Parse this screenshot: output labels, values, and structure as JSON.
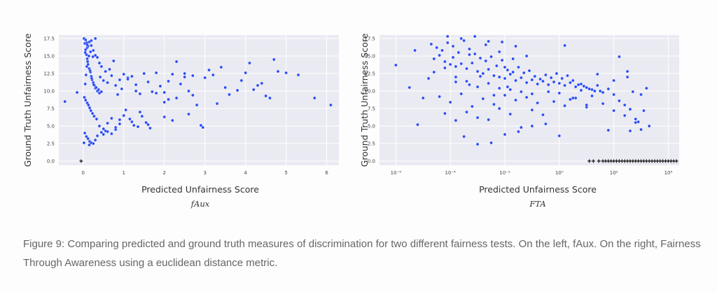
{
  "caption": "Figure 9: Comparing predicted and ground truth measures of discrimination for two different fairness tests. On the left, fAux. On the right, Fairness Through Awareness using a euclidean distance metric.",
  "colors": {
    "points": "#2a4cf5",
    "plot_bg": "#eaeaf2",
    "grid": "#ffffff",
    "marker_plus": "#111111"
  },
  "chart_data": [
    {
      "type": "scatter",
      "subtitle": "fAux",
      "xlabel": "Predicted Unfairness Score",
      "ylabel": "Ground Truth Unfairness Score",
      "xlim": [
        -0.6,
        6.3
      ],
      "ylim": [
        -0.6,
        18.0
      ],
      "xticks": [
        0,
        1,
        2,
        3,
        4,
        5,
        6
      ],
      "yticks": [
        0.0,
        2.5,
        5.0,
        7.5,
        10.0,
        12.5,
        15.0,
        17.5
      ],
      "xscale": "linear",
      "grid": true,
      "series": [
        {
          "marker": "circle",
          "x": [
            -0.45,
            -0.15,
            0.02,
            0.04,
            0.06,
            0.08,
            0.1,
            0.12,
            0.15,
            0.18,
            0.2,
            0.22,
            0.25,
            0.28,
            0.3,
            0.35,
            0.4,
            0.05,
            0.07,
            0.09,
            0.11,
            0.14,
            0.17,
            0.21,
            0.26,
            0.32,
            0.38,
            0.45,
            0.03,
            0.06,
            0.1,
            0.13,
            0.16,
            0.19,
            0.23,
            0.27,
            0.33,
            0.42,
            0.5,
            0.55,
            0.6,
            0.7,
            0.8,
            0.9,
            1.0,
            0.65,
            0.75,
            0.85,
            0.95,
            1.1,
            1.2,
            1.3,
            1.4,
            1.5,
            1.6,
            1.7,
            1.8,
            1.9,
            2.0,
            2.1,
            2.2,
            2.3,
            2.4,
            2.5,
            2.6,
            2.7,
            2.8,
            3.0,
            3.2,
            3.4,
            3.6,
            3.8,
            4.0,
            4.2,
            4.4,
            4.6,
            4.7,
            5.0,
            5.3,
            5.7,
            6.1,
            1.0,
            1.2,
            1.4,
            1.6,
            2.0,
            2.2,
            2.6,
            0.4,
            0.5,
            0.6,
            0.7,
            0.8,
            0.9,
            1.05,
            1.15,
            1.25,
            1.35,
            1.45,
            1.55,
            1.65,
            2.9,
            2.95,
            0.04,
            0.08,
            0.12,
            0.16,
            0.2,
            0.3,
            0.35,
            0.45,
            0.55,
            0.25,
            0.15,
            0.02,
            0.5,
            0.6,
            0.7,
            0.8,
            0.9,
            0.05,
            0.1,
            0.15,
            0.2,
            0.25,
            0.3,
            0.35,
            0.4,
            0.45,
            0.06,
            0.09,
            0.12,
            0.18,
            0.24,
            2.3,
            2.5,
            3.1,
            3.3,
            3.5,
            3.9,
            4.1,
            4.5,
            4.3,
            4.8,
            1.8,
            2.0,
            1.3,
            1.1,
            2.1,
            2.7,
            0.3,
            0.2,
            0.1
          ],
          "y": [
            8.5,
            9.8,
            17.5,
            16.8,
            15.9,
            15.2,
            14.6,
            13.8,
            13.2,
            12.7,
            12.1,
            11.6,
            11.2,
            10.8,
            10.4,
            10.0,
            9.7,
            11.0,
            12.3,
            13.5,
            14.2,
            15.0,
            12.9,
            11.8,
            10.9,
            10.5,
            10.2,
            9.9,
            9.1,
            8.7,
            8.3,
            8.0,
            7.6,
            7.2,
            6.8,
            6.4,
            6.0,
            12.0,
            11.5,
            12.8,
            11.2,
            12.2,
            10.8,
            11.6,
            12.4,
            13.1,
            14.3,
            9.5,
            10.3,
            11.9,
            12.1,
            10.0,
            9.6,
            12.5,
            11.3,
            9.9,
            12.6,
            10.7,
            9.8,
            11.4,
            12.4,
            9.0,
            11.0,
            12.0,
            10.0,
            12.2,
            8.0,
            11.9,
            12.3,
            13.4,
            9.5,
            10.1,
            12.6,
            10.2,
            11.1,
            9.0,
            14.5,
            12.6,
            12.3,
            9.0,
            8.0,
            6.5,
            5.6,
            7.0,
            5.2,
            6.3,
            5.8,
            6.7,
            5.0,
            4.6,
            5.4,
            6.1,
            4.8,
            5.9,
            7.3,
            6.0,
            5.1,
            4.9,
            6.4,
            5.5,
            4.7,
            5.1,
            4.8,
            4.0,
            3.5,
            3.2,
            2.8,
            2.6,
            3.0,
            3.6,
            4.1,
            4.3,
            2.5,
            2.3,
            2.6,
            3.8,
            4.2,
            3.9,
            4.5,
            5.3,
            15.5,
            16.2,
            17.0,
            16.5,
            15.8,
            15.1,
            14.8,
            14.0,
            13.5,
            17.3,
            16.9,
            16.4,
            15.6,
            14.9,
            14.2,
            12.5,
            13.0,
            8.2,
            10.5,
            11.5,
            14.0,
            9.3,
            10.8,
            12.8,
            9.7,
            8.4,
            10.9,
            11.7,
            8.8,
            9.4,
            17.5,
            17.2,
            16.6
          ]
        },
        {
          "marker": "plus",
          "x": [
            -0.05
          ],
          "y": [
            0.0
          ]
        }
      ]
    },
    {
      "type": "scatter",
      "subtitle": "FTA",
      "xlabel": "Predicted Unfairness Score",
      "ylabel": "Ground Truth Unfairness Score",
      "xlim": [
        -6.6,
        4.4
      ],
      "ylim": [
        -0.6,
        18.0
      ],
      "xticks": [
        -6,
        -4,
        -2,
        0,
        2,
        4
      ],
      "xticklabels": [
        "10⁻⁶",
        "10⁻⁴",
        "10⁻²",
        "10⁰",
        "10²",
        "10⁴"
      ],
      "yticks": [
        0.0,
        2.5,
        5.0,
        7.5,
        10.0,
        12.5,
        15.0,
        17.5
      ],
      "xscale": "log",
      "grid": true,
      "series": [
        {
          "marker": "circle",
          "x": [
            -6.0,
            -5.5,
            -5.2,
            -5.0,
            -4.8,
            -4.6,
            -4.4,
            -4.2,
            -4.0,
            -3.8,
            -3.6,
            -3.4,
            -3.2,
            -3.0,
            -2.8,
            -2.6,
            -2.4,
            -2.2,
            -2.0,
            -1.8,
            -1.6,
            -1.4,
            -1.2,
            -1.0,
            -0.8,
            -0.6,
            -0.4,
            -0.2,
            0.0,
            0.2,
            0.4,
            0.6,
            0.8,
            1.0,
            1.2,
            1.4,
            1.6,
            1.8,
            2.0,
            2.2,
            2.4,
            2.6,
            2.8,
            3.0,
            -4.5,
            -4.3,
            -4.1,
            -3.9,
            -3.7,
            -3.5,
            -3.3,
            -3.1,
            -2.9,
            -2.7,
            -2.5,
            -2.3,
            -2.1,
            -1.9,
            -1.7,
            -1.5,
            -1.3,
            -1.1,
            -0.9,
            -0.7,
            -0.5,
            -0.3,
            -0.1,
            0.1,
            0.3,
            0.5,
            0.7,
            0.9,
            1.1,
            1.3,
            -4.4,
            -4.0,
            -3.6,
            -3.2,
            -2.8,
            -2.4,
            -2.0,
            -1.6,
            -1.2,
            -0.8,
            -0.4,
            0.0,
            0.4,
            0.8,
            1.2,
            1.6,
            2.0,
            2.4,
            2.8,
            -4.2,
            -3.8,
            -3.4,
            -3.0,
            -2.6,
            -2.2,
            -1.8,
            -1.4,
            -1.0,
            -0.6,
            -0.2,
            0.2,
            0.6,
            1.0,
            -4.6,
            -4.2,
            -3.8,
            -3.4,
            -3.0,
            -2.6,
            -2.2,
            -1.8,
            -1.4,
            -1.0,
            -3.5,
            -3.0,
            -2.5,
            -2.0,
            -1.5,
            -1.0,
            -0.5,
            0.0,
            0.5,
            1.0,
            1.5,
            2.0,
            2.5,
            3.0,
            3.2,
            -5.3,
            -4.7,
            -4.1,
            -3.6,
            -3.1,
            -2.6,
            -2.1,
            -1.6,
            -3.9,
            -3.3,
            -2.7,
            -2.2,
            -1.7,
            -1.2,
            1.8,
            2.6,
            2.9,
            3.1,
            0.2,
            1.4,
            2.2,
            2.5,
            2.7,
            3.3,
            -3.3,
            -2.4,
            -1.9,
            -3.8,
            -2.9,
            -2.0
          ],
          "y": [
            13.7,
            10.5,
            5.2,
            9.0,
            11.8,
            14.6,
            15.1,
            14.2,
            13.8,
            13.5,
            13.9,
            13.2,
            14.0,
            12.8,
            12.5,
            13.1,
            12.2,
            12.0,
            11.8,
            12.4,
            11.5,
            11.9,
            11.2,
            11.6,
            11.0,
            11.4,
            10.9,
            11.3,
            11.1,
            10.8,
            11.2,
            10.6,
            11.0,
            10.5,
            10.2,
            10.8,
            9.8,
            10.3,
            9.5,
            8.6,
            8.0,
            7.4,
            6.0,
            4.5,
            16.2,
            15.8,
            16.9,
            16.4,
            15.5,
            17.2,
            16.0,
            15.3,
            14.7,
            16.6,
            14.9,
            13.6,
            14.4,
            13.0,
            12.7,
            13.4,
            12.6,
            12.9,
            12.1,
            11.7,
            12.3,
            11.9,
            12.5,
            11.8,
            12.2,
            11.5,
            10.9,
            10.7,
            10.3,
            10.0,
            9.2,
            8.4,
            9.6,
            7.8,
            8.9,
            8.1,
            9.4,
            8.7,
            9.1,
            8.3,
            9.9,
            9.7,
            8.8,
            10.1,
            9.3,
            8.2,
            7.2,
            6.5,
            5.5,
            6.8,
            5.8,
            7.0,
            6.2,
            5.9,
            7.5,
            6.7,
            4.8,
            7.3,
            6.6,
            8.5,
            7.9,
            9.0,
            7.7,
            12.7,
            13.3,
            12.0,
            11.4,
            10.6,
            11.1,
            10.4,
            10.2,
            9.9,
            9.6,
            3.5,
            2.4,
            2.6,
            3.8,
            4.2,
            5.0,
            5.3,
            3.6,
            9.0,
            8.0,
            10.0,
            11.5,
            12.0,
            9.5,
            10.4,
            15.8,
            16.7,
            17.8,
            17.5,
            17.8,
            17.1,
            17.0,
            16.4,
            14.8,
            15.2,
            14.3,
            15.6,
            14.6,
            15.0,
            4.4,
            4.3,
            5.6,
            7.2,
            16.5,
            12.4,
            14.9,
            12.8,
            9.9,
            5.0,
            10.9,
            9.4,
            10.6,
            11.3,
            12.1,
            13.4
          ]
        },
        {
          "marker": "plus",
          "x": [
            1.1,
            1.25,
            1.45,
            1.6,
            1.7,
            1.8,
            1.9,
            2.0,
            2.1,
            2.2,
            2.3,
            2.4,
            2.5,
            2.6,
            2.7,
            2.8,
            2.9,
            3.0,
            3.1,
            3.2,
            3.3,
            3.4,
            3.5,
            3.6,
            3.7,
            3.8,
            3.9,
            4.0,
            4.1,
            4.2,
            4.3
          ],
          "y": [
            0,
            0,
            0,
            0,
            0,
            0,
            0,
            0,
            0,
            0,
            0,
            0,
            0,
            0,
            0,
            0,
            0,
            0,
            0,
            0,
            0,
            0,
            0,
            0,
            0,
            0,
            0,
            0,
            0,
            0,
            0
          ]
        }
      ]
    }
  ]
}
